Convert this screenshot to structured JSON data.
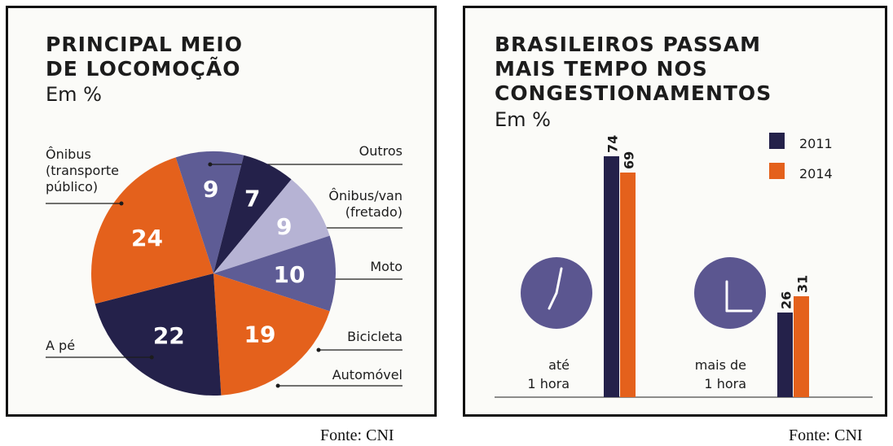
{
  "colors": {
    "orange": "#e4611c",
    "navy": "#24214a",
    "purple": "#5e5c95",
    "lavender": "#b6b3d4",
    "clock_face": "#5b5690"
  },
  "chart_data": [
    {
      "type": "pie",
      "title_lines": [
        "PRINCIPAL MEIO",
        "DE LOCOMOÇÃO"
      ],
      "subtitle": "Em %",
      "slices": [
        {
          "label_lines": [
            "Outros"
          ],
          "value": 9,
          "value_label": "9",
          "color": "#5e5c95"
        },
        {
          "label_lines": [
            "Ônibus/van",
            "(fretado)"
          ],
          "value": 7,
          "value_label": "7",
          "color": "#24214a"
        },
        {
          "label_lines": [
            "Moto"
          ],
          "value": 9,
          "value_label": "9",
          "color": "#b6b3d4"
        },
        {
          "label_lines": [
            "Bicicleta"
          ],
          "value": 10,
          "value_label": "10",
          "color": "#5e5c95"
        },
        {
          "label_lines": [
            "Automóvel"
          ],
          "value": 19,
          "value_label": "19",
          "color": "#e4611c"
        },
        {
          "label_lines": [
            "A pé"
          ],
          "value": 22,
          "value_label": "22",
          "color": "#24214a"
        },
        {
          "label_lines": [
            "Ônibus",
            "(transporte",
            "público)"
          ],
          "value": 24,
          "value_label": "24",
          "color": "#e4611c"
        }
      ],
      "source": "Fonte: CNI"
    },
    {
      "type": "bar",
      "title_lines": [
        "BRASILEIROS PASSAM",
        "MAIS TEMPO NOS",
        "CONGESTIONAMENTOS"
      ],
      "subtitle": "Em %",
      "categories": [
        [
          "até",
          "1 hora"
        ],
        [
          "mais de",
          "1 hora"
        ]
      ],
      "series": [
        {
          "name": "2011",
          "values": [
            74,
            26
          ],
          "color": "#24214a"
        },
        {
          "name": "2014",
          "values": [
            69,
            31
          ],
          "color": "#e4611c"
        }
      ],
      "legend": "top-right",
      "source": "Fonte: CNI"
    }
  ]
}
